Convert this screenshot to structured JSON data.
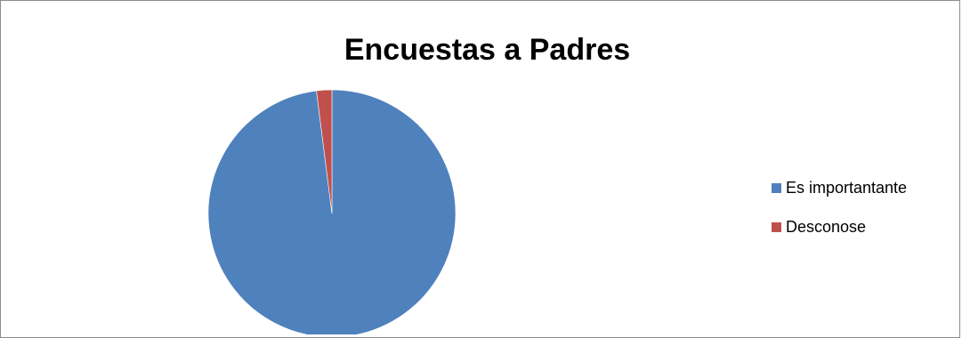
{
  "chart_data": {
    "type": "pie",
    "title": "Encuestas a Padres",
    "categories": [
      "Es importantante",
      "Desconose"
    ],
    "values": [
      98,
      2
    ],
    "colors": [
      "#4f81bd",
      "#c0504d"
    ],
    "legend_position": "right"
  }
}
